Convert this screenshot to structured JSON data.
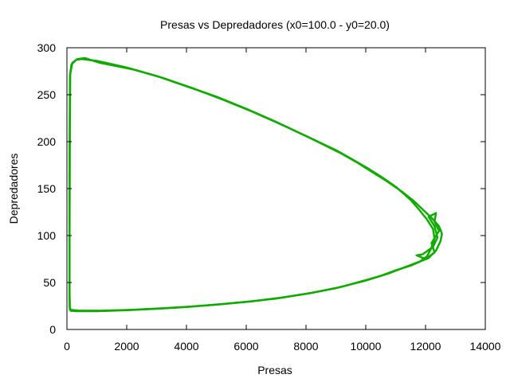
{
  "chart_data": {
    "type": "line",
    "title": "Presas vs Depredadores (x0=100.0 - y0=20.0)",
    "xlabel": "Presas",
    "ylabel": "Depredadores",
    "xlim": [
      0,
      14000
    ],
    "ylim": [
      0,
      300
    ],
    "xticks": [
      0,
      2000,
      4000,
      6000,
      8000,
      10000,
      12000,
      14000
    ],
    "yticks": [
      0,
      50,
      100,
      150,
      200,
      250,
      300
    ],
    "grid": false,
    "legend": "none",
    "series": [
      {
        "color": "#11aa00",
        "points": [
          [
            100,
            20
          ],
          [
            300,
            19.5
          ],
          [
            1000,
            19.5
          ],
          [
            2000,
            20.5
          ],
          [
            3000,
            22
          ],
          [
            4000,
            24
          ],
          [
            5000,
            26.5
          ],
          [
            6000,
            29.5
          ],
          [
            7000,
            33
          ],
          [
            8000,
            38
          ],
          [
            9000,
            44
          ],
          [
            10000,
            52
          ],
          [
            10500,
            57
          ],
          [
            11000,
            63
          ],
          [
            11500,
            68
          ],
          [
            11800,
            72
          ],
          [
            12050,
            78
          ],
          [
            12200,
            87
          ],
          [
            12300,
            97
          ],
          [
            12250,
            107
          ],
          [
            12050,
            117
          ],
          [
            11800,
            127
          ],
          [
            11500,
            138
          ],
          [
            11000,
            152
          ],
          [
            10500,
            163
          ],
          [
            10000,
            173
          ],
          [
            9500,
            182
          ],
          [
            9000,
            191
          ],
          [
            8000,
            206
          ],
          [
            7000,
            221
          ],
          [
            6000,
            235
          ],
          [
            5000,
            248
          ],
          [
            4000,
            259
          ],
          [
            3000,
            270
          ],
          [
            2000,
            279
          ],
          [
            1000,
            286
          ],
          [
            500,
            288
          ],
          [
            300,
            287
          ],
          [
            150,
            282
          ],
          [
            100,
            270
          ],
          [
            90,
            200
          ],
          [
            85,
            100
          ],
          [
            85,
            40
          ],
          [
            90,
            25
          ],
          [
            100,
            20
          ]
        ]
      },
      {
        "color": "#11aa00",
        "points": [
          [
            120,
            21
          ],
          [
            400,
            20
          ],
          [
            1200,
            20
          ],
          [
            2200,
            21
          ],
          [
            3200,
            22.5
          ],
          [
            4200,
            24.5
          ],
          [
            5200,
            27
          ],
          [
            6200,
            30
          ],
          [
            7200,
            34
          ],
          [
            8200,
            39
          ],
          [
            9200,
            45.5
          ],
          [
            10100,
            53.5
          ],
          [
            10700,
            59
          ],
          [
            11200,
            65
          ],
          [
            11700,
            71
          ],
          [
            12100,
            76
          ],
          [
            12350,
            84
          ],
          [
            12500,
            94
          ],
          [
            12550,
            102
          ],
          [
            12450,
            110
          ],
          [
            12200,
            119
          ],
          [
            11900,
            128
          ],
          [
            11600,
            137
          ],
          [
            11200,
            147
          ],
          [
            10700,
            158
          ],
          [
            10200,
            168
          ],
          [
            9700,
            178
          ],
          [
            9200,
            187
          ],
          [
            8200,
            203
          ],
          [
            7200,
            218
          ],
          [
            6200,
            232
          ],
          [
            5200,
            245
          ],
          [
            4200,
            257
          ],
          [
            3200,
            268
          ],
          [
            2200,
            277
          ],
          [
            1100,
            284
          ],
          [
            600,
            289
          ],
          [
            350,
            288
          ],
          [
            180,
            284
          ],
          [
            110,
            272
          ],
          [
            95,
            200
          ],
          [
            88,
            100
          ],
          [
            88,
            40
          ],
          [
            95,
            24
          ],
          [
            120,
            21
          ]
        ]
      },
      {
        "color": "#11aa00",
        "points": [
          [
            11900,
            80
          ],
          [
            12250,
            88
          ],
          [
            12400,
            98
          ],
          [
            12300,
            110
          ],
          [
            12100,
            120
          ],
          [
            12350,
            124
          ],
          [
            12300,
            115
          ],
          [
            12450,
            105
          ],
          [
            12200,
            92
          ],
          [
            12300,
            82
          ],
          [
            12000,
            75
          ],
          [
            11700,
            79
          ],
          [
            11900,
            80
          ]
        ]
      }
    ]
  }
}
